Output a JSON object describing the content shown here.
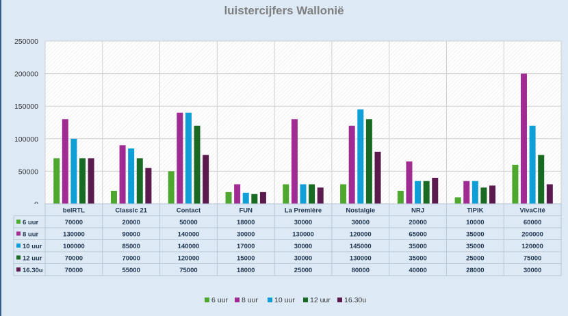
{
  "chart_data": {
    "type": "bar",
    "title": "luistercijfers Wallonië",
    "categories": [
      "belRTL",
      "Classic 21",
      "Contact",
      "FUN",
      "La Première",
      "Nostalgie",
      "NRJ",
      "TIPIK",
      "VivaCité"
    ],
    "series": [
      {
        "name": "6 uur",
        "color": "#4ea72e",
        "values": [
          70000,
          20000,
          50000,
          18000,
          30000,
          30000,
          20000,
          10000,
          60000
        ]
      },
      {
        "name": "8 uur",
        "color": "#a02b93",
        "values": [
          130000,
          90000,
          140000,
          30000,
          130000,
          120000,
          65000,
          35000,
          200000
        ]
      },
      {
        "name": "10 uur",
        "color": "#0f9ed5",
        "values": [
          100000,
          85000,
          140000,
          17000,
          30000,
          145000,
          35000,
          35000,
          120000
        ]
      },
      {
        "name": "12 uur",
        "color": "#196b24",
        "values": [
          70000,
          70000,
          120000,
          15000,
          30000,
          130000,
          35000,
          25000,
          75000
        ]
      },
      {
        "name": "16.30u",
        "color": "#5b1a4d",
        "values": [
          70000,
          55000,
          75000,
          18000,
          25000,
          80000,
          40000,
          28000,
          30000
        ]
      }
    ],
    "ylim": [
      0,
      250000
    ],
    "yticks": [
      0,
      50000,
      100000,
      150000,
      200000,
      250000
    ],
    "legend": "bottom",
    "data_table": true
  }
}
